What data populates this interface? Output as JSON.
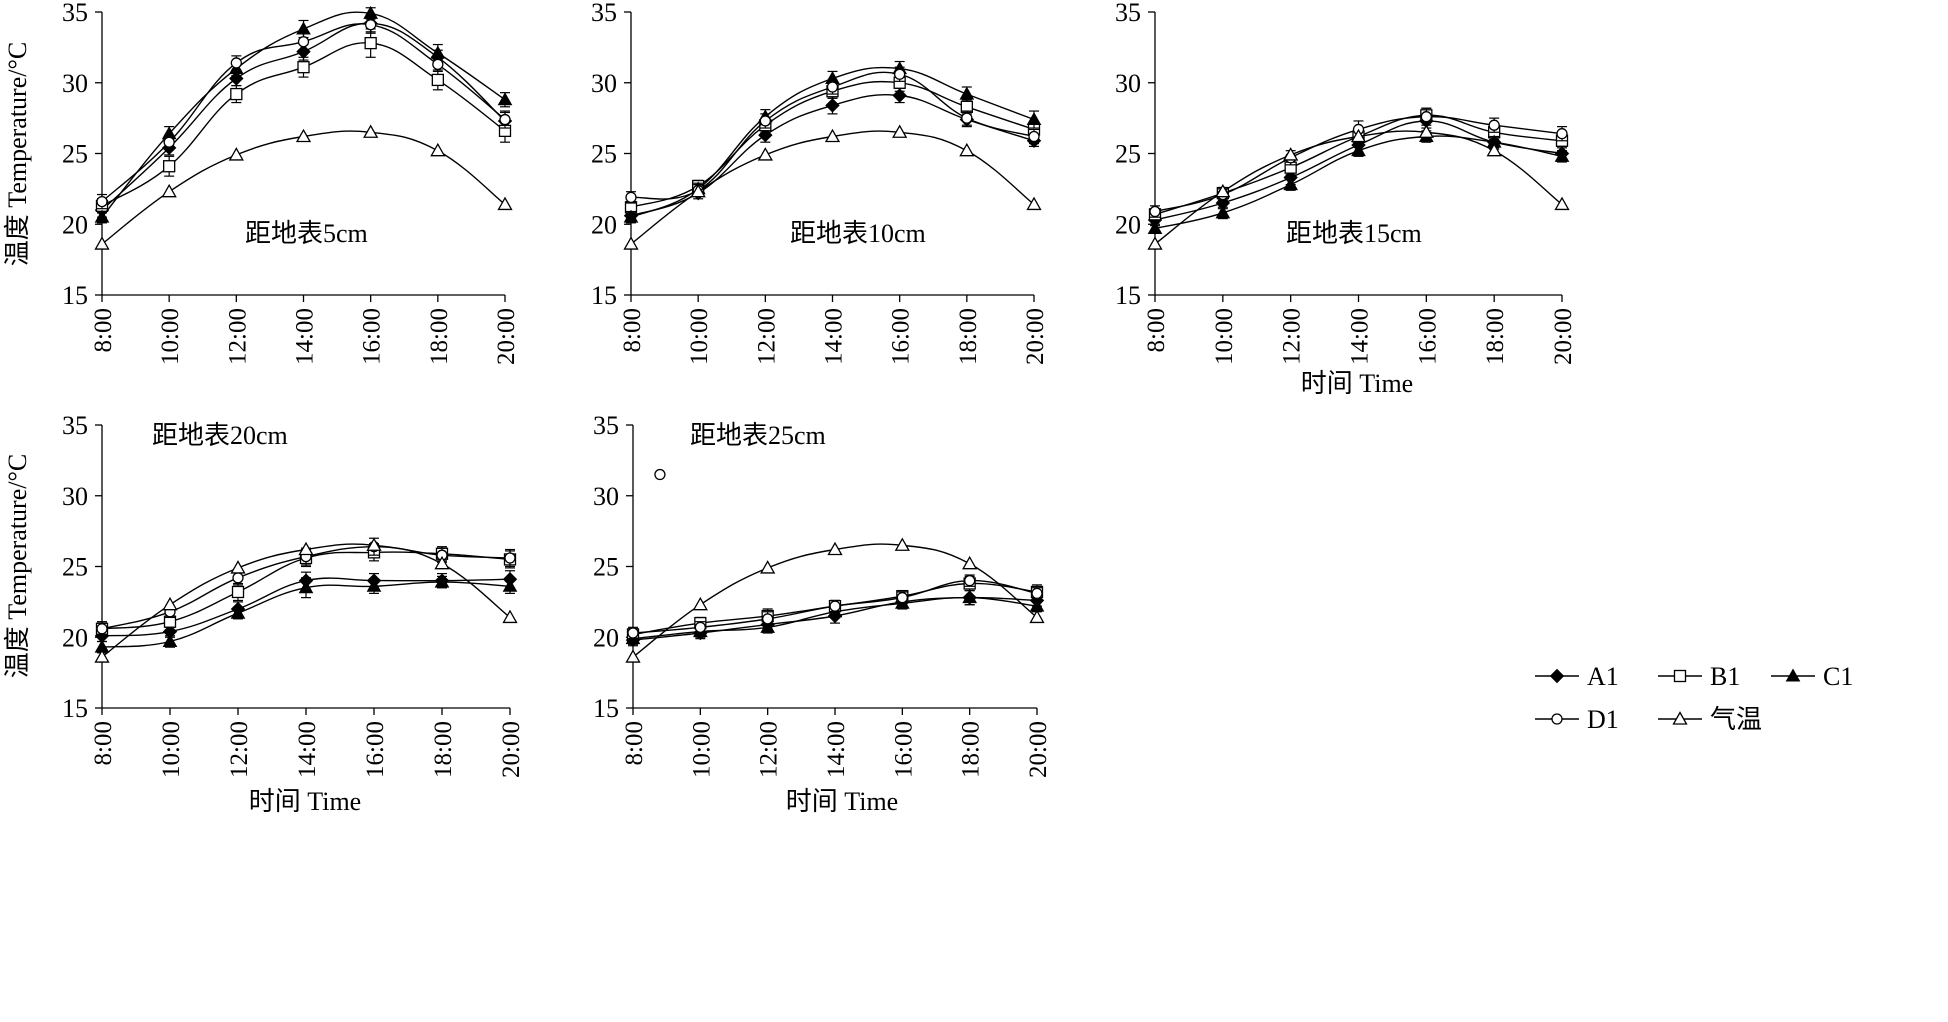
{
  "labels": {
    "ylabel": "温度 Temperature/°C",
    "xlabel": "时间 Time"
  },
  "legend": {
    "entries": [
      {
        "name": "A1",
        "marker": "diamond-filled"
      },
      {
        "name": "B1",
        "marker": "square-open"
      },
      {
        "name": "C1",
        "marker": "triangle-filled"
      },
      {
        "name": "D1",
        "marker": "circle-open"
      },
      {
        "name": "气温",
        "marker": "triangle-open"
      }
    ]
  },
  "colors": {
    "ink": "#000000",
    "open_fill": "#ffffff"
  },
  "chart_data": [
    {
      "type": "line",
      "title": "距地表5cm",
      "x": [
        "8:00",
        "10:00",
        "12:00",
        "14:00",
        "16:00",
        "18:00",
        "20:00"
      ],
      "ylim": [
        15,
        35
      ],
      "yticks": [
        15,
        20,
        25,
        30,
        35
      ],
      "ylabel": "温度 Temperature/°C",
      "xlabel": "",
      "series": [
        {
          "name": "A1",
          "values": [
            21.0,
            25.4,
            30.3,
            32.2,
            34.2,
            31.8,
            27.3
          ],
          "errors": [
            0.5,
            0.5,
            0.5,
            0.6,
            0.6,
            0.5,
            0.6
          ]
        },
        {
          "name": "B1",
          "values": [
            21.3,
            24.1,
            29.2,
            31.1,
            32.8,
            30.2,
            26.6
          ],
          "errors": [
            0.5,
            0.7,
            0.6,
            0.7,
            1.0,
            0.7,
            0.8
          ]
        },
        {
          "name": "C1",
          "values": [
            20.5,
            26.4,
            31.0,
            33.8,
            34.9,
            32.1,
            28.8
          ],
          "errors": [
            0.4,
            0.5,
            0.5,
            0.6,
            0.4,
            0.6,
            0.5
          ]
        },
        {
          "name": "D1",
          "values": [
            21.6,
            25.8,
            31.4,
            32.9,
            34.1,
            31.3,
            27.4
          ],
          "errors": [
            0.5,
            0.5,
            0.5,
            0.6,
            0.6,
            0.5,
            0.6
          ]
        },
        {
          "name": "气温",
          "values": [
            18.6,
            22.3,
            24.9,
            26.2,
            26.5,
            25.2,
            21.4
          ],
          "errors": [
            0,
            0,
            0,
            0,
            0,
            0,
            0
          ]
        }
      ]
    },
    {
      "type": "line",
      "title": "距地表10cm",
      "x": [
        "8:00",
        "10:00",
        "12:00",
        "14:00",
        "16:00",
        "18:00",
        "20:00"
      ],
      "ylim": [
        15,
        35
      ],
      "yticks": [
        15,
        20,
        25,
        30,
        35
      ],
      "ylabel": "",
      "xlabel": "",
      "series": [
        {
          "name": "A1",
          "values": [
            20.6,
            22.2,
            26.3,
            28.4,
            29.1,
            27.4,
            25.9
          ],
          "errors": [
            0.4,
            0.4,
            0.5,
            0.6,
            0.5,
            0.5,
            0.4
          ]
        },
        {
          "name": "B1",
          "values": [
            21.2,
            22.7,
            27.0,
            29.4,
            30.0,
            28.3,
            26.7
          ],
          "errors": [
            0.4,
            0.4,
            0.5,
            0.5,
            0.6,
            0.5,
            0.5
          ]
        },
        {
          "name": "C1",
          "values": [
            20.5,
            22.5,
            27.6,
            30.3,
            31.0,
            29.2,
            27.4
          ],
          "errors": [
            0.4,
            0.4,
            0.5,
            0.5,
            0.5,
            0.5,
            0.6
          ]
        },
        {
          "name": "D1",
          "values": [
            21.9,
            22.4,
            27.3,
            29.7,
            30.6,
            27.5,
            26.2
          ],
          "errors": [
            0.4,
            0.4,
            0.5,
            0.5,
            0.5,
            0.5,
            0.5
          ]
        },
        {
          "name": "气温",
          "values": [
            18.6,
            22.3,
            24.9,
            26.2,
            26.5,
            25.2,
            21.4
          ],
          "errors": [
            0,
            0,
            0,
            0,
            0,
            0,
            0
          ]
        }
      ]
    },
    {
      "type": "line",
      "title": "距地表15cm",
      "x": [
        "8:00",
        "10:00",
        "12:00",
        "14:00",
        "16:00",
        "18:00",
        "20:00"
      ],
      "ylim": [
        15,
        35
      ],
      "yticks": [
        15,
        20,
        25,
        30,
        35
      ],
      "ylabel": "",
      "xlabel": "时间 Time",
      "series": [
        {
          "name": "A1",
          "values": [
            20.3,
            21.5,
            23.3,
            25.6,
            27.3,
            25.8,
            25.0
          ],
          "errors": [
            0.4,
            0.4,
            0.5,
            0.5,
            0.5,
            0.5,
            0.5
          ]
        },
        {
          "name": "B1",
          "values": [
            20.7,
            22.2,
            24.0,
            26.2,
            27.7,
            26.5,
            25.9
          ],
          "errors": [
            0.4,
            0.4,
            0.5,
            0.5,
            0.5,
            0.5,
            0.5
          ]
        },
        {
          "name": "C1",
          "values": [
            19.7,
            20.8,
            22.8,
            25.2,
            26.2,
            25.8,
            24.8
          ],
          "errors": [
            0.3,
            0.4,
            0.4,
            0.4,
            0.4,
            0.4,
            0.4
          ]
        },
        {
          "name": "D1",
          "values": [
            20.9,
            22.1,
            24.7,
            26.7,
            27.6,
            27.0,
            26.4
          ],
          "errors": [
            0.4,
            0.4,
            0.5,
            0.6,
            0.6,
            0.5,
            0.5
          ]
        },
        {
          "name": "气温",
          "values": [
            18.6,
            22.3,
            24.9,
            26.2,
            26.5,
            25.2,
            21.4
          ],
          "errors": [
            0,
            0,
            0,
            0,
            0,
            0,
            0
          ]
        }
      ]
    },
    {
      "type": "line",
      "title": "距地表20cm",
      "x": [
        "8:00",
        "10:00",
        "12:00",
        "14:00",
        "16:00",
        "18:00",
        "20:00"
      ],
      "ylim": [
        15,
        35
      ],
      "yticks": [
        15,
        20,
        25,
        30,
        35
      ],
      "ylabel": "温度 Temperature/°C",
      "xlabel": "时间 Time",
      "series": [
        {
          "name": "A1",
          "values": [
            20.1,
            20.4,
            22.0,
            24.0,
            24.0,
            24.0,
            24.1
          ],
          "errors": [
            0.4,
            0.4,
            0.5,
            0.6,
            0.5,
            0.5,
            0.6
          ]
        },
        {
          "name": "B1",
          "values": [
            20.6,
            21.1,
            23.2,
            25.6,
            26.0,
            25.9,
            25.5
          ],
          "errors": [
            0.5,
            0.4,
            0.6,
            0.6,
            0.6,
            0.5,
            0.6
          ]
        },
        {
          "name": "C1",
          "values": [
            19.3,
            19.7,
            21.7,
            23.5,
            23.6,
            23.9,
            23.6
          ],
          "errors": [
            0.4,
            0.4,
            0.4,
            0.7,
            0.5,
            0.4,
            0.5
          ]
        },
        {
          "name": "D1",
          "values": [
            20.6,
            21.8,
            24.2,
            25.7,
            26.4,
            25.8,
            25.6
          ],
          "errors": [
            0.4,
            0.4,
            0.5,
            0.6,
            0.6,
            0.5,
            0.6
          ]
        },
        {
          "name": "气温",
          "values": [
            18.6,
            22.3,
            24.9,
            26.2,
            26.5,
            25.2,
            21.4
          ],
          "errors": [
            0,
            0,
            0,
            0,
            0,
            0,
            0
          ]
        }
      ]
    },
    {
      "type": "line",
      "title": "距地表25cm",
      "x": [
        "8:00",
        "10:00",
        "12:00",
        "14:00",
        "16:00",
        "18:00",
        "20:00"
      ],
      "ylim": [
        15,
        35
      ],
      "yticks": [
        15,
        20,
        25,
        30,
        35
      ],
      "ylabel": "",
      "xlabel": "时间 Time",
      "series": [
        {
          "name": "A1",
          "values": [
            19.8,
            20.3,
            20.9,
            21.5,
            22.5,
            22.8,
            22.6
          ],
          "errors": [
            0.4,
            0.4,
            0.4,
            0.5,
            0.4,
            0.5,
            0.4
          ]
        },
        {
          "name": "B1",
          "values": [
            20.2,
            21.0,
            21.5,
            22.2,
            22.9,
            23.8,
            23.2
          ],
          "errors": [
            0.4,
            0.4,
            0.5,
            0.4,
            0.4,
            0.5,
            0.5
          ]
        },
        {
          "name": "C1",
          "values": [
            19.9,
            20.4,
            20.7,
            21.8,
            22.4,
            22.8,
            22.2
          ],
          "errors": [
            0.4,
            0.4,
            0.4,
            0.4,
            0.4,
            0.5,
            0.4
          ]
        },
        {
          "name": "D1",
          "values": [
            20.3,
            20.7,
            21.3,
            22.2,
            22.8,
            24.0,
            23.1
          ],
          "errors": [
            0.4,
            0.4,
            0.5,
            0.4,
            0.4,
            0.4,
            0.4
          ]
        },
        {
          "name": "气温",
          "values": [
            18.6,
            22.3,
            24.9,
            26.2,
            26.5,
            25.2,
            21.4
          ],
          "errors": [
            0,
            0,
            0,
            0,
            0,
            0,
            0
          ]
        }
      ],
      "annotations": [
        {
          "marker": "circle-open",
          "x": "8:48",
          "y": 31.5
        }
      ]
    }
  ]
}
